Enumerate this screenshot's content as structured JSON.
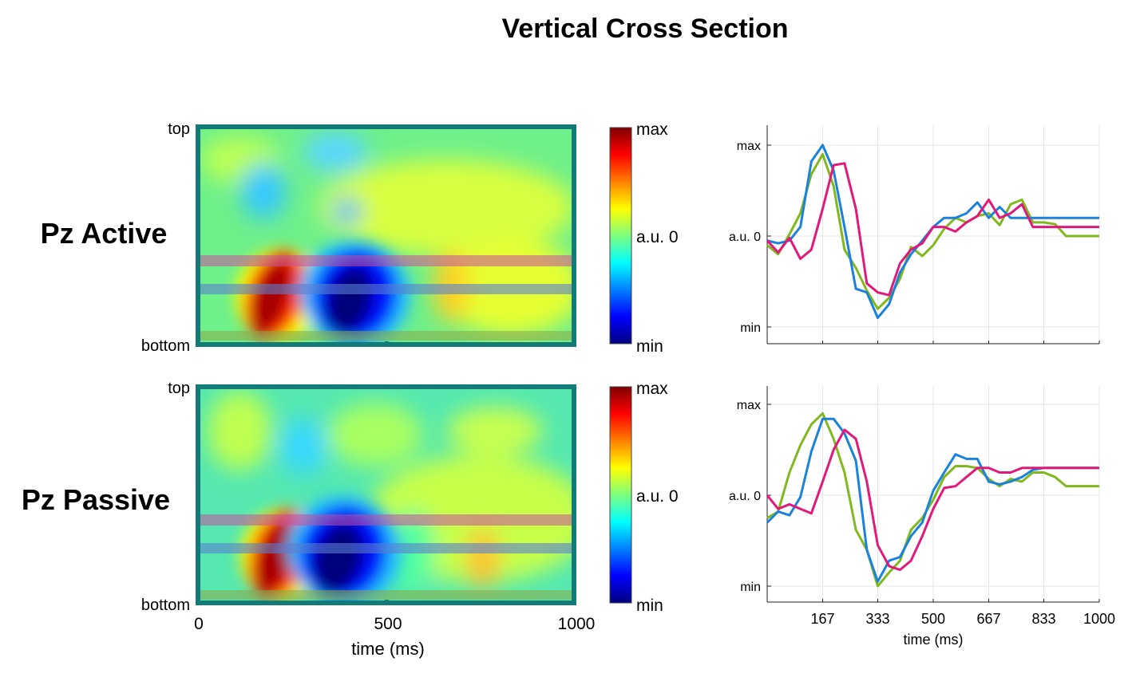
{
  "title": "Vertical Cross Section",
  "colors": {
    "frame": "#137a78",
    "green": "#80b91d",
    "blue": "#1a82db",
    "magenta": "#e0197a"
  },
  "heatmap_common": {
    "y_top_label": "top",
    "y_bottom_label": "bottom",
    "x_ticks": [
      "0",
      "500",
      "1000"
    ],
    "xlabel": "time (ms)",
    "colorbar_labels": [
      "max",
      "a.u. 0",
      "min"
    ]
  },
  "line_common": {
    "y_tick_labels": [
      "max",
      "a.u. 0",
      "min"
    ],
    "x_tick_labels": [
      "167",
      "333",
      "500",
      "667",
      "833",
      "1000"
    ],
    "xlabel": "time (ms)"
  },
  "chart_data": [
    {
      "type": "heatmap",
      "label": "Pz Active",
      "x_range": [
        0,
        1000
      ],
      "colormap": "jet",
      "value_range": [
        "min",
        "max"
      ],
      "highlight_rows": [
        "red band",
        "blue band",
        "green band at bottom"
      ]
    },
    {
      "type": "line",
      "label": "Pz Active",
      "x": [
        0,
        33,
        67,
        100,
        133,
        167,
        200,
        233,
        267,
        300,
        333,
        367,
        400,
        433,
        467,
        500,
        533,
        567,
        600,
        633,
        667,
        700,
        733,
        767,
        800,
        833,
        867,
        900,
        933,
        967,
        1000
      ],
      "ylim": [
        -1,
        1
      ],
      "series": [
        {
          "color": "green",
          "values": [
            -0.1,
            -0.2,
            0.02,
            0.25,
            0.68,
            0.9,
            0.55,
            -0.15,
            -0.35,
            -0.6,
            -0.8,
            -0.68,
            -0.47,
            -0.12,
            -0.22,
            -0.1,
            0.08,
            0.2,
            0.15,
            0.22,
            0.25,
            0.12,
            0.35,
            0.4,
            0.15,
            0.15,
            0.13,
            0.0,
            0.0,
            0.0,
            0.0
          ]
        },
        {
          "color": "blue",
          "values": [
            -0.05,
            -0.08,
            -0.05,
            0.1,
            0.82,
            1.0,
            0.72,
            0.1,
            -0.58,
            -0.62,
            -0.9,
            -0.75,
            -0.4,
            -0.2,
            -0.05,
            0.1,
            0.2,
            0.2,
            0.25,
            0.37,
            0.2,
            0.32,
            0.2,
            0.2,
            0.2,
            0.2,
            0.2,
            0.2,
            0.2,
            0.2,
            0.2
          ]
        },
        {
          "color": "magenta",
          "values": [
            -0.05,
            -0.18,
            -0.02,
            -0.25,
            -0.15,
            0.3,
            0.78,
            0.8,
            0.3,
            -0.52,
            -0.62,
            -0.65,
            -0.3,
            -0.15,
            -0.08,
            0.1,
            0.1,
            0.05,
            0.15,
            0.22,
            0.4,
            0.2,
            0.25,
            0.35,
            0.1,
            0.1,
            0.1,
            0.1,
            0.1,
            0.1,
            0.1
          ]
        }
      ]
    },
    {
      "type": "heatmap",
      "label": "Pz Passive",
      "x_range": [
        0,
        1000
      ],
      "colormap": "jet",
      "value_range": [
        "min",
        "max"
      ],
      "highlight_rows": [
        "red band",
        "blue band",
        "green band at bottom"
      ]
    },
    {
      "type": "line",
      "label": "Pz Passive",
      "x": [
        0,
        33,
        67,
        100,
        133,
        167,
        200,
        233,
        267,
        300,
        333,
        367,
        400,
        433,
        467,
        500,
        533,
        567,
        600,
        633,
        667,
        700,
        733,
        767,
        800,
        833,
        867,
        900,
        933,
        967,
        1000
      ],
      "ylim": [
        -1,
        1
      ],
      "series": [
        {
          "color": "green",
          "values": [
            -0.25,
            -0.18,
            0.25,
            0.55,
            0.78,
            0.9,
            0.62,
            0.25,
            -0.38,
            -0.6,
            -1.0,
            -0.85,
            -0.72,
            -0.38,
            -0.25,
            -0.05,
            0.2,
            0.32,
            0.32,
            0.3,
            0.18,
            0.1,
            0.18,
            0.15,
            0.25,
            0.25,
            0.2,
            0.1,
            0.1,
            0.1,
            0.1
          ]
        },
        {
          "color": "blue",
          "values": [
            -0.3,
            -0.18,
            -0.22,
            -0.02,
            0.48,
            0.84,
            0.84,
            0.68,
            0.38,
            -0.6,
            -0.95,
            -0.72,
            -0.68,
            -0.45,
            -0.3,
            0.05,
            0.25,
            0.45,
            0.4,
            0.4,
            0.15,
            0.12,
            0.15,
            0.2,
            0.28,
            0.3,
            0.3,
            0.3,
            0.3,
            0.3,
            0.3
          ]
        },
        {
          "color": "magenta",
          "values": [
            0.0,
            -0.15,
            -0.1,
            -0.15,
            -0.2,
            0.15,
            0.5,
            0.72,
            0.62,
            0.15,
            -0.55,
            -0.78,
            -0.82,
            -0.72,
            -0.45,
            -0.15,
            0.08,
            0.1,
            0.2,
            0.3,
            0.3,
            0.25,
            0.25,
            0.3,
            0.3,
            0.3,
            0.3,
            0.3,
            0.3,
            0.3,
            0.3
          ]
        }
      ]
    }
  ]
}
